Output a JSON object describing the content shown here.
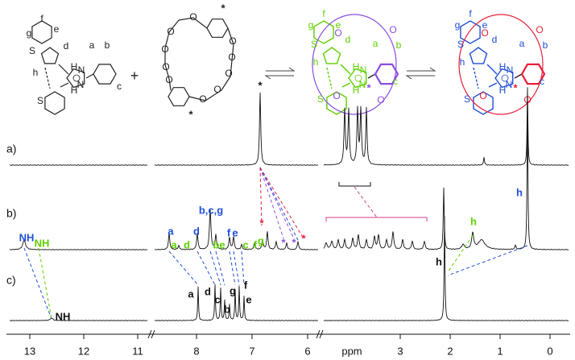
{
  "structures": {
    "guest": {
      "labels": [
        "f",
        "e",
        "g",
        "d",
        "S",
        "h",
        "a",
        "b",
        "c",
        "S",
        "H",
        "N",
        "N",
        "H"
      ],
      "color": "#222222"
    },
    "plus": "+",
    "crown": {
      "oxygens": [
        "O",
        "O",
        "O",
        "O",
        "O",
        "O",
        "O",
        "O",
        "O",
        "O"
      ],
      "stars": [
        "*",
        "*"
      ],
      "color": "#222222"
    },
    "complex_green": {
      "labels": [
        "f",
        "e",
        "g",
        "d",
        "S",
        "h",
        "a",
        "b",
        "c",
        "S",
        "H",
        "N",
        "N",
        "H",
        "O",
        "O",
        "O",
        "O"
      ],
      "guest_color": "#5fd000",
      "host_color": "#8a4fe0",
      "star": "*"
    },
    "complex_blue_red": {
      "labels": [
        "f",
        "e",
        "g",
        "d",
        "S",
        "h",
        "a",
        "b",
        "c",
        "S",
        "H",
        "N",
        "N",
        "H",
        "O",
        "O",
        "O",
        "O"
      ],
      "guest_color": "#1f4fd8",
      "host_color": "#e8203a",
      "star": "*"
    }
  },
  "spectra": {
    "panels": [
      "a)",
      "b)",
      "c)"
    ],
    "a_labels": [
      {
        "text": "*",
        "color": "#111111"
      }
    ],
    "b_labels": [
      {
        "text": "NH",
        "color": "#1f4fd8"
      },
      {
        "text": "NH",
        "color": "#5fd000"
      },
      {
        "text": "a",
        "color": "#1f4fd8"
      },
      {
        "text": "a",
        "color": "#5fd000"
      },
      {
        "text": "d",
        "color": "#5fd000"
      },
      {
        "text": "d",
        "color": "#1f4fd8"
      },
      {
        "text": "b,c,g",
        "color": "#1f4fd8"
      },
      {
        "text": "f",
        "color": "#1f4fd8"
      },
      {
        "text": "e",
        "color": "#1f4fd8"
      },
      {
        "text": "be",
        "color": "#5fd000"
      },
      {
        "text": "c",
        "color": "#5fd000"
      },
      {
        "text": "f",
        "color": "#5fd000"
      },
      {
        "text": "g",
        "color": "#5fd000"
      },
      {
        "text": "*",
        "color": "#e8203a"
      },
      {
        "text": "*",
        "color": "#8a4fe0"
      },
      {
        "text": "*",
        "color": "#8a4fe0"
      },
      {
        "text": "*",
        "color": "#e8203a"
      },
      {
        "text": "h",
        "color": "#5fd000"
      },
      {
        "text": "h",
        "color": "#1f4fd8"
      }
    ],
    "c_labels": [
      {
        "text": "NH",
        "color": "#111111"
      },
      {
        "text": "a",
        "color": "#111111"
      },
      {
        "text": "d",
        "color": "#111111"
      },
      {
        "text": "c",
        "color": "#111111"
      },
      {
        "text": "b",
        "color": "#111111"
      },
      {
        "text": "g",
        "color": "#111111"
      },
      {
        "text": "f",
        "color": "#111111"
      },
      {
        "text": "e",
        "color": "#111111"
      },
      {
        "text": "h",
        "color": "#111111"
      }
    ],
    "axis": {
      "ticks": [
        13,
        12,
        11,
        8,
        7,
        6,
        3,
        2,
        1,
        0
      ],
      "label": "ppm"
    }
  }
}
